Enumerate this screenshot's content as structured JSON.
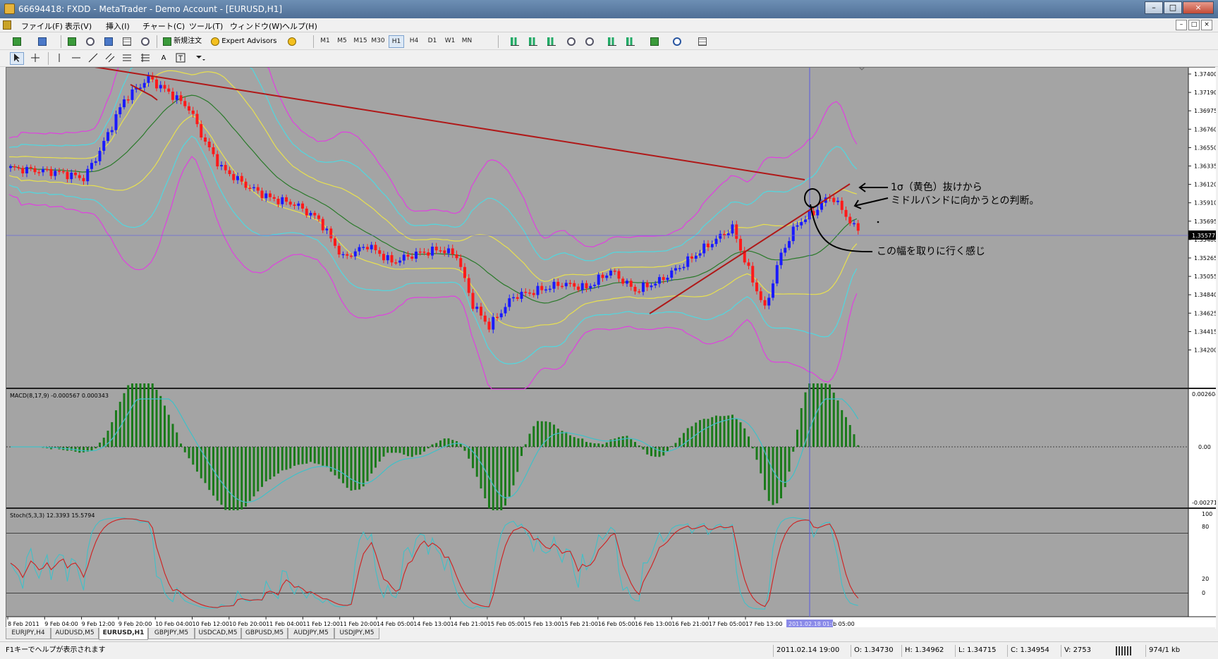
{
  "window": {
    "title": "66694418: FXDD - MetaTrader - Demo Account - [EURUSD,H1]"
  },
  "window_buttons": {
    "minimize": "–",
    "maximize": "□",
    "close": "×"
  },
  "menu": [
    "ファイル(F)",
    "表示(V)",
    "挿入(I)",
    "チャート(C)",
    "ツール(T)",
    "ウィンドウ(W)",
    "ヘルプ(H)"
  ],
  "toolbar": {
    "new_order": "新規注文",
    "expert_advisors": "Expert Advisors",
    "timeframes": [
      "M1",
      "M5",
      "M15",
      "M30",
      "H1",
      "H4",
      "D1",
      "W1",
      "MN"
    ],
    "active_timeframe": "H1",
    "draw_text_tool": "A"
  },
  "main_chart": {
    "y_ticks": [
      "1.37400",
      "1.37190",
      "1.36975",
      "1.36760",
      "1.36550",
      "1.36335",
      "1.36120",
      "1.35910",
      "1.35695",
      "1.35480",
      "1.35265",
      "1.35055",
      "1.34840",
      "1.34625",
      "1.34415",
      "1.34200"
    ],
    "current_price": "1.35577",
    "annotation_1": "1σ（黄色）抜けから",
    "annotation_2": "ミドルバンドに向かうとの判断。",
    "annotation_3": "この幅を取りに行く感じ"
  },
  "macd": {
    "label": "MACD(8,17,9) -0.000567 0.000343",
    "ticks": [
      "0.002604",
      "0.00",
      "-0.00271"
    ]
  },
  "stoch": {
    "label": "Stoch(5,3,3) 12.3393 15.5794",
    "ticks": [
      "100",
      "80",
      "20",
      "0"
    ]
  },
  "x_axis": [
    "8 Feb 2011",
    "9 Feb 04:00",
    "9 Feb 12:00",
    "9 Feb 20:00",
    "10 Feb 04:00",
    "10 Feb 12:00",
    "10 Feb 20:00",
    "11 Feb 04:00",
    "11 Feb 12:00",
    "11 Feb 20:00",
    "14 Feb 05:00",
    "14 Feb 13:00",
    "14 Feb 21:00",
    "15 Feb 05:00",
    "15 Feb 13:00",
    "15 Feb 21:00",
    "16 Feb 05:00",
    "16 Feb 13:00",
    "16 Feb 21:00",
    "17 Feb 05:00",
    "17 Feb 13:00"
  ],
  "crosshair_time": "2011.02.18 01:00",
  "crosshair_tail": "b 05:00",
  "tabs": [
    "EURJPY,H4",
    "AUDUSD,M5",
    "EURUSD,H1",
    "GBPJPY,M5",
    "USDCAD,M5",
    "GBPUSD,M5",
    "AUDJPY,M5",
    "USDJPY,M5"
  ],
  "active_tab": "EURUSD,H1",
  "status": {
    "help": "F1キーでヘルプが表示されます",
    "datetime": "2011.02.14 19:00",
    "open": "O: 1.34730",
    "high": "H: 1.34962",
    "low": "L: 1.34715",
    "close": "C: 1.34954",
    "volume": "V: 2753",
    "traffic": "974/1 kb"
  },
  "colors": {
    "chart_bg": "#a4a4a4",
    "bull": "#1a1aff",
    "bear": "#ff1a1a",
    "ma_green": "#2a7a2a",
    "band_yellow": "#e8e050",
    "band_cyan": "#50d8e0",
    "band_magenta": "#e040e0",
    "trendline": "#b01818",
    "macd_hist": "#1a7a1a",
    "stoch_main": "#d02020",
    "stoch_signal": "#40c0c8"
  }
}
